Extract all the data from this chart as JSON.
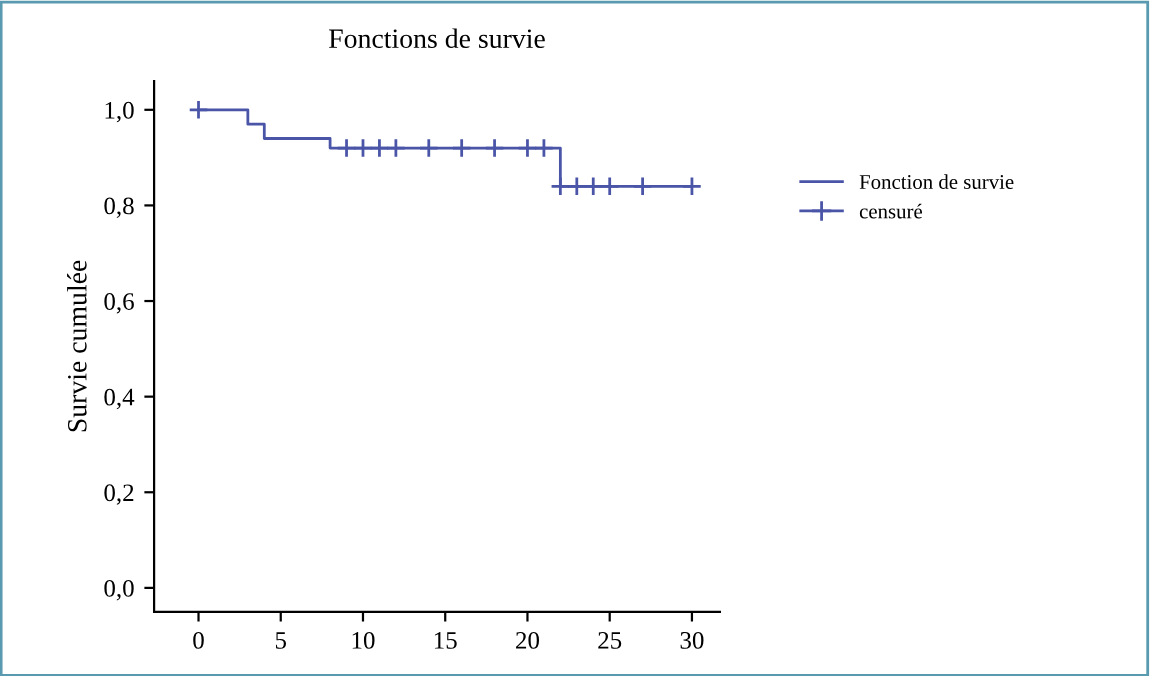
{
  "chart_data": {
    "type": "step",
    "title": "Fonctions de survie",
    "ylabel": "Survie cumulée",
    "series": [
      {
        "name": "Fonction de survie",
        "color": "#4a55a8",
        "x": [
          0,
          3,
          4,
          8,
          22,
          30
        ],
        "values": [
          1.0,
          0.97,
          0.94,
          0.92,
          0.84,
          0.84
        ],
        "marker": "none"
      },
      {
        "name": "censuré",
        "type": "scatter",
        "color": "#4a55a8",
        "x": [
          0,
          9,
          10,
          11,
          12,
          14,
          16,
          18,
          20,
          21,
          22,
          23,
          24,
          25,
          27,
          30
        ],
        "values": [
          1.0,
          0.92,
          0.92,
          0.92,
          0.92,
          0.92,
          0.92,
          0.92,
          0.92,
          0.92,
          0.84,
          0.84,
          0.84,
          0.84,
          0.84,
          0.84
        ],
        "marker": "cross"
      }
    ],
    "xlim": [
      -2.7,
      31.7
    ],
    "xticks": [
      0,
      5,
      10,
      15,
      20,
      25,
      30
    ],
    "ylim": [
      -0.05,
      1.06
    ],
    "yticks": [
      {
        "value": 0,
        "label": "0,0"
      },
      {
        "value": 0.2,
        "label": "0,2"
      },
      {
        "value": 0.4,
        "label": "0,4"
      },
      {
        "value": 0.6,
        "label": "0,6"
      },
      {
        "value": 0.8,
        "label": "0,8"
      },
      {
        "value": 1.0,
        "label": "1,0"
      }
    ],
    "grid": false,
    "legend": "right"
  }
}
